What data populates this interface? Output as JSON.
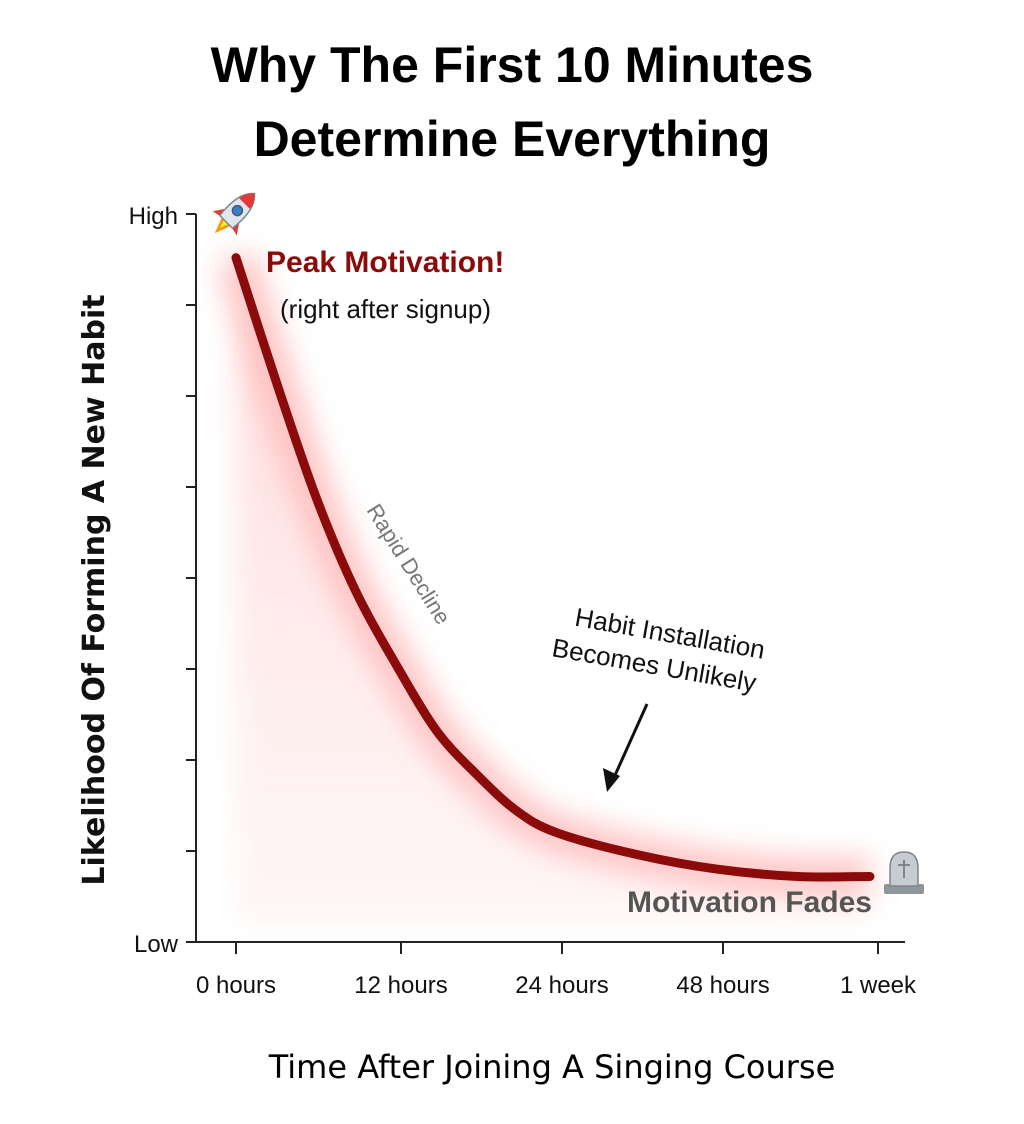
{
  "chart_data": {
    "type": "line",
    "title_lines": [
      "Why The First 10 Minutes",
      "Determine Everything"
    ],
    "xlabel": "Time After Joining A Singing Course",
    "ylabel": "Likelihood Of Forming A New Habit",
    "x_ticks": [
      "0 hours",
      "12 hours",
      "24 hours",
      "48 hours",
      "1 week"
    ],
    "y_ticks": [
      "Low",
      "High"
    ],
    "ylim": [
      0,
      1
    ],
    "series": [
      {
        "color": "#8b0a0a",
        "points": [
          {
            "x": 0.0,
            "y": 0.94
          },
          {
            "x": 0.25,
            "y": 0.77
          },
          {
            "x": 0.5,
            "y": 0.61
          },
          {
            "x": 0.75,
            "y": 0.48
          },
          {
            "x": 1.0,
            "y": 0.38
          },
          {
            "x": 1.25,
            "y": 0.29
          },
          {
            "x": 1.5,
            "y": 0.23
          },
          {
            "x": 1.75,
            "y": 0.18
          },
          {
            "x": 2.0,
            "y": 0.15
          },
          {
            "x": 2.5,
            "y": 0.12
          },
          {
            "x": 3.0,
            "y": 0.1
          },
          {
            "x": 3.5,
            "y": 0.09
          },
          {
            "x": 3.95,
            "y": 0.09
          }
        ]
      }
    ],
    "annotations": {
      "peak": "Peak Motivation!",
      "peak_sub": "(right after signup)",
      "decline": "Rapid Decline",
      "habit_line1": "Habit Installation",
      "habit_line2": "Becomes Unlikely",
      "fades": "Motivation Fades"
    },
    "icons": {
      "peak": "rocket-icon",
      "end": "tombstone-icon"
    }
  }
}
